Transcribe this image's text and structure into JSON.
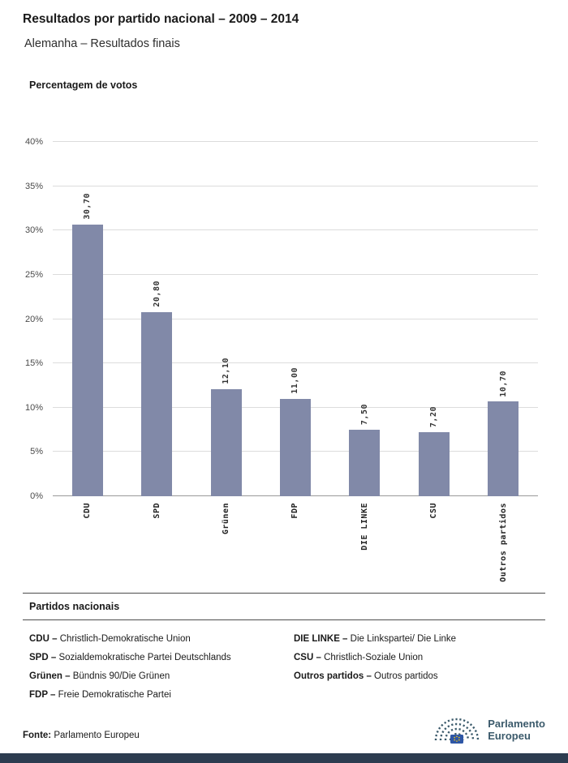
{
  "header": {
    "title": "Resultados por partido nacional – 2009 – 2014",
    "subtitle": "Alemanha – Resultados finais"
  },
  "chart_data": {
    "type": "bar",
    "title": "Percentagem de votos",
    "categories": [
      "CDU",
      "SPD",
      "Grünen",
      "FDP",
      "DIE LINKE",
      "CSU",
      "Outros partidos"
    ],
    "values": [
      30.7,
      20.8,
      12.1,
      11.0,
      7.5,
      7.2,
      10.7
    ],
    "value_labels": [
      "30,70",
      "20,80",
      "12,10",
      "11,00",
      "7,50",
      "7,20",
      "10,70"
    ],
    "ylabel": "Percentagem de votos",
    "xlabel": "",
    "ylim": [
      0,
      40
    ],
    "ytick_step": 5,
    "ytick_labels": [
      "0%",
      "5%",
      "10%",
      "15%",
      "20%",
      "25%",
      "30%",
      "35%",
      "40%"
    ],
    "grid": true,
    "legend_position": "none",
    "bar_color": "#8189A8"
  },
  "legend": {
    "heading": "Partidos nacionais",
    "columns": [
      [
        {
          "code": "CDU –",
          "name": "Christlich-Demokratische Union"
        },
        {
          "code": "SPD –",
          "name": "Sozialdemokratische Partei Deutschlands"
        },
        {
          "code": "Grünen –",
          "name": "Bündnis 90/Die Grünen"
        },
        {
          "code": "FDP –",
          "name": "Freie Demokratische Partei"
        }
      ],
      [
        {
          "code": "DIE LINKE –",
          "name": "Die Linkspartei/ Die Linke"
        },
        {
          "code": "CSU –",
          "name": "Christlich-Soziale Union"
        },
        {
          "code": "Outros partidos –",
          "name": "Outros partidos"
        }
      ]
    ]
  },
  "footer": {
    "source_label": "Fonte:",
    "source_value": "Parlamento Europeu",
    "logo": {
      "line1": "Parlamento",
      "line2": "Europeu"
    }
  },
  "colors": {
    "bar": "#8189A8",
    "footer_strip": "#2D3C50",
    "logo_text": "#3B5A6B",
    "gridline": "#DCDCDC",
    "baseline": "#9A9A9A"
  }
}
